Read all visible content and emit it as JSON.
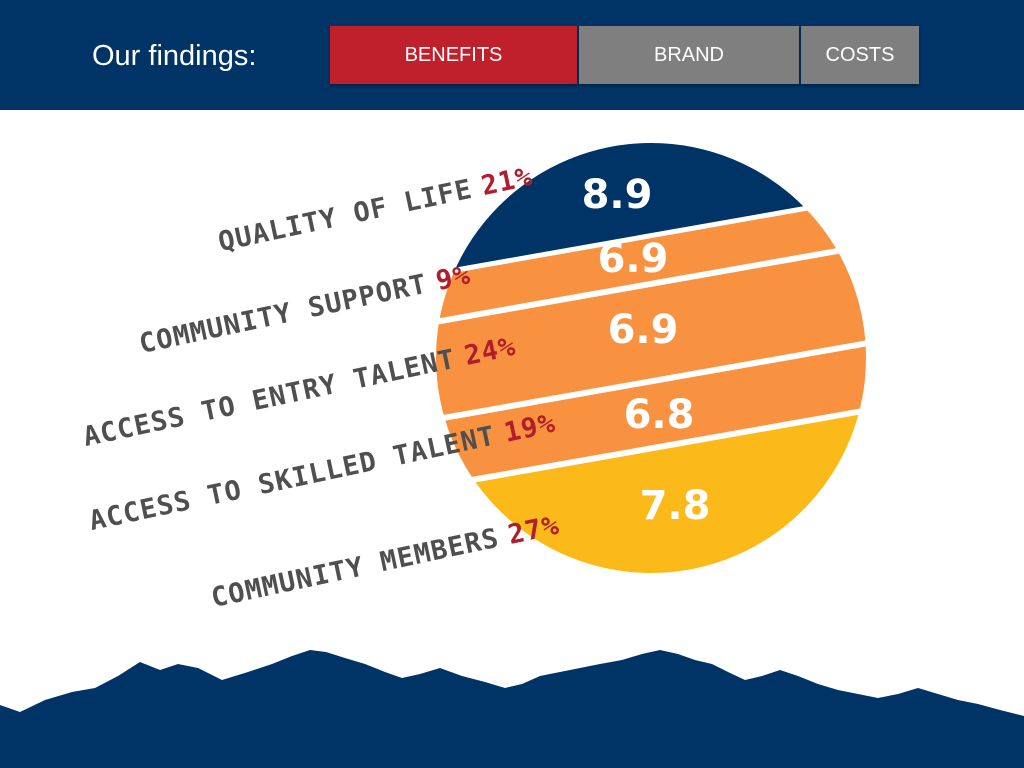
{
  "header": {
    "title": "Our findings:",
    "tabs": [
      {
        "label": "BENEFITS",
        "active": true,
        "color": "#c0202c"
      },
      {
        "label": "BRAND",
        "active": false,
        "color": "#7f7f7f"
      },
      {
        "label": "COSTS",
        "active": false,
        "color": "#7f7f7f"
      }
    ]
  },
  "findings": [
    {
      "label": "Quality of Life",
      "percent": "21%",
      "score": "8.9",
      "color": "#003466",
      "text_color": "#ffffff"
    },
    {
      "label": "Community Support",
      "percent": "9%",
      "score": "6.9",
      "color": "#f99240",
      "text_color": "#ffffff"
    },
    {
      "label": "Access to Entry Talent",
      "percent": "24%",
      "score": "6.9",
      "color": "#f99240",
      "text_color": "#ffffff"
    },
    {
      "label": "Access to Skilled Talent",
      "percent": "19%",
      "score": "6.8",
      "color": "#f99240",
      "text_color": "#ffffff"
    },
    {
      "label": "Community Members",
      "percent": "27%",
      "score": "7.8",
      "color": "#fbba1a",
      "text_color": "#ffffff"
    }
  ],
  "colors": {
    "header_bg": "#003466",
    "mountains": "#003466",
    "label_text": "#4f4f4f",
    "percent_text": "#b01e2c"
  },
  "icons": {
    "decoration": "mountain-range"
  }
}
